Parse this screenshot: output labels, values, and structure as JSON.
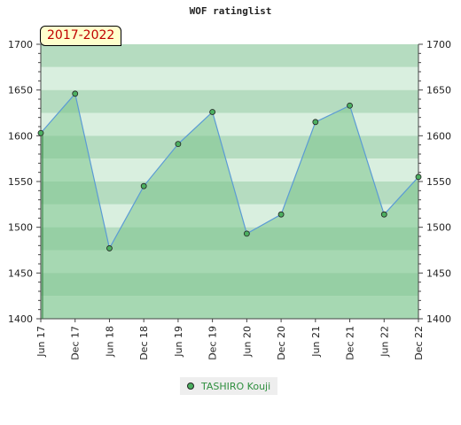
{
  "chart_data": {
    "type": "area",
    "title": "WOF ratinglist",
    "period": "2017-2022",
    "categories": [
      "Jun 17",
      "Dec 17",
      "Jun 18",
      "Dec 18",
      "Jun 19",
      "Dec 19",
      "Jun 20",
      "Dec 20",
      "Jun 21",
      "Dec 21",
      "Jun 22",
      "Dec 22"
    ],
    "series": [
      {
        "name": "TASHIRO Kouji",
        "values": [
          1603,
          1646,
          1477,
          1545,
          1591,
          1626,
          1493,
          1514,
          1615,
          1633,
          1514,
          1555
        ]
      }
    ],
    "ylim": [
      1400,
      1700
    ],
    "yticks": [
      1400,
      1450,
      1500,
      1550,
      1600,
      1650,
      1700
    ],
    "ytick_labels": [
      "1400",
      "1450",
      "1500",
      "1550",
      "1600",
      "1650",
      "1700"
    ],
    "legend": "bottom-center",
    "grid": true,
    "colors": {
      "line": "#5b9bd5",
      "area": "#7cc48c",
      "marker": "#4caf60",
      "band_dark": "#b5dcc0",
      "band_light": "#d9efdf"
    }
  }
}
